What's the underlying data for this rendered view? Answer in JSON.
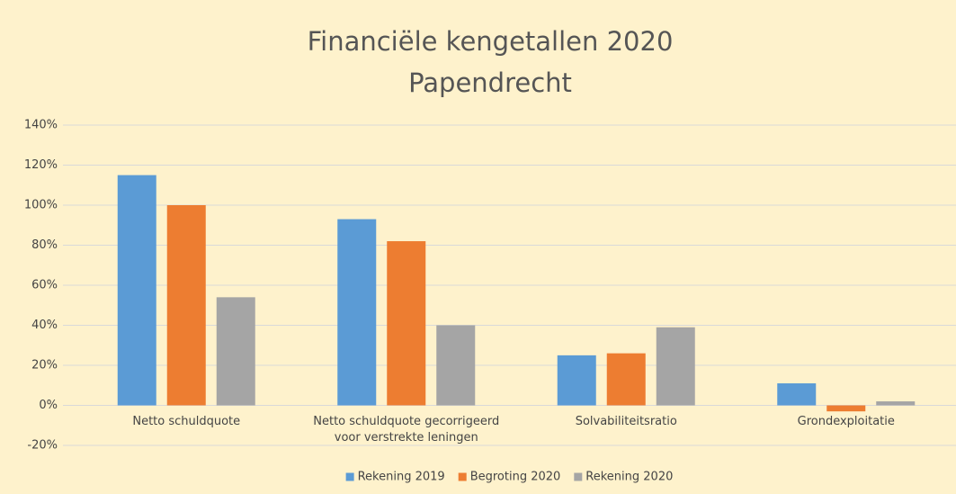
{
  "chart_data": {
    "type": "bar",
    "title": "Financiële kengetallen 2020",
    "subtitle": "Papendrecht",
    "categories": [
      "Netto schuldquote",
      "Netto schuldquote gecorrigeerd voor verstrekte leningen",
      "Solvabiliteitsratio",
      "Grondexploitatie"
    ],
    "series": [
      {
        "name": "Rekening 2019",
        "color": "#5b9bd5",
        "values": [
          115,
          93,
          25,
          11
        ]
      },
      {
        "name": "Begroting 2020",
        "color": "#ed7d31",
        "values": [
          100,
          82,
          26,
          -3
        ]
      },
      {
        "name": "Rekening 2020",
        "color": "#a5a5a5",
        "values": [
          54,
          40,
          39,
          2
        ]
      }
    ],
    "ylim": [
      -20,
      140
    ],
    "yticks": [
      {
        "value": -20,
        "label": "-20%"
      },
      {
        "value": 0,
        "label": "0%"
      },
      {
        "value": 20,
        "label": "20%"
      },
      {
        "value": 40,
        "label": "40%"
      },
      {
        "value": 60,
        "label": "60%"
      },
      {
        "value": 80,
        "label": "80%"
      },
      {
        "value": 100,
        "label": "100%"
      },
      {
        "value": 120,
        "label": "120%"
      },
      {
        "value": 140,
        "label": "140%"
      }
    ],
    "grid": true,
    "legend": "bottom"
  }
}
